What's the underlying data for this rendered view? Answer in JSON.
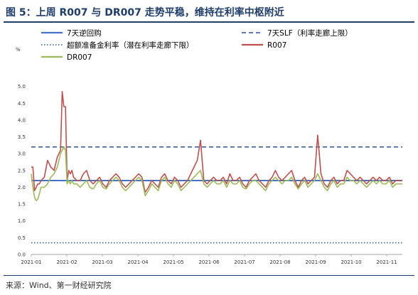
{
  "header": {
    "title": "图 5：上周 R007 与 DR007 走势平稳，维持在利率中枢附近"
  },
  "source": {
    "text": "来源：Wind、第一财经研究院"
  },
  "chart_data": {
    "type": "line",
    "unit_label": "%",
    "ylim": [
      0,
      5.5
    ],
    "y_ticks": [
      "0.0",
      "0.5",
      "1.0",
      "1.5",
      "2.0",
      "2.5",
      "3.0",
      "3.5",
      "4.0",
      "4.5",
      "5.0"
    ],
    "x_ticks": [
      "2021-01",
      "2021-02",
      "2021-03",
      "2021-04",
      "2021-05",
      "2021-06",
      "2021-07",
      "2021-08",
      "2021-09",
      "2021-10",
      "2021-11"
    ],
    "legend": [
      {
        "label": "7天逆回购",
        "color": "#4472c4",
        "style": "solid"
      },
      {
        "label": "7天SLF（利率走廊上限）",
        "color": "#2e5597",
        "style": "dashed"
      },
      {
        "label": "超额准备金利率（潜在利率走廊下限）",
        "color": "#2e5597",
        "style": "dotted"
      },
      {
        "label": "R007",
        "color": "#c0504d",
        "style": "solid"
      },
      {
        "label": "DR007",
        "color": "#9bbb59",
        "style": "solid"
      }
    ],
    "series": [
      {
        "name": "7天逆回购",
        "type": "constant",
        "value": 2.2
      },
      {
        "name": "7天SLF（利率走廊上限）",
        "type": "constant",
        "value": 3.2
      },
      {
        "name": "超额准备金利率（潜在利率走廊下限）",
        "type": "constant",
        "value": 0.35
      },
      {
        "name": "R007",
        "x": [
          0,
          1,
          2,
          3,
          4,
          5,
          6,
          8,
          10,
          12,
          14,
          16,
          18,
          19,
          20,
          21,
          22,
          23,
          24,
          25,
          26,
          28,
          30,
          32,
          34,
          36,
          38,
          40,
          42,
          44,
          46,
          48,
          50,
          52,
          54,
          56,
          58,
          60,
          62,
          64,
          66,
          68,
          70,
          72,
          74,
          76,
          78,
          80,
          82,
          84,
          86,
          88,
          90,
          92,
          94,
          96,
          98,
          100,
          102,
          104,
          106,
          108,
          110,
          112,
          114,
          116,
          118,
          120,
          122,
          124,
          126,
          128,
          130,
          132,
          134,
          136,
          138,
          140,
          142,
          144,
          146,
          148,
          150,
          152,
          154,
          156,
          158,
          160,
          162,
          164,
          166,
          168,
          170,
          172,
          174,
          176,
          178,
          180,
          182,
          184,
          186,
          188,
          190,
          192,
          194,
          196,
          198,
          200,
          202,
          204,
          206,
          208,
          210,
          212,
          214,
          216,
          218,
          220,
          222,
          224,
          226,
          228
        ],
        "y": [
          2.6,
          2.6,
          1.9,
          2.0,
          2.1,
          2.1,
          2.2,
          2.3,
          2.8,
          2.6,
          2.5,
          2.9,
          3.1,
          4.85,
          4.4,
          4.4,
          2.2,
          2.5,
          2.4,
          2.5,
          2.3,
          2.2,
          2.2,
          2.4,
          2.5,
          2.2,
          2.1,
          2.2,
          2.3,
          2.1,
          2.0,
          2.2,
          2.3,
          2.4,
          2.3,
          2.1,
          2.0,
          2.1,
          2.2,
          2.3,
          2.4,
          2.3,
          1.85,
          2.0,
          2.2,
          2.1,
          2.0,
          2.3,
          2.4,
          2.2,
          2.1,
          2.3,
          2.2,
          2.0,
          2.1,
          2.2,
          2.4,
          2.6,
          2.8,
          3.4,
          2.2,
          2.1,
          2.2,
          2.3,
          2.2,
          2.2,
          2.3,
          2.1,
          2.4,
          2.2,
          2.2,
          2.3,
          2.1,
          2.0,
          2.2,
          2.3,
          2.4,
          2.2,
          2.1,
          2.0,
          2.2,
          2.3,
          2.5,
          2.3,
          2.2,
          2.3,
          2.4,
          2.5,
          2.2,
          2.0,
          2.2,
          2.3,
          2.1,
          2.2,
          2.3,
          3.55,
          2.4,
          2.1,
          2.0,
          2.2,
          2.3,
          2.1,
          2.2,
          2.2,
          2.5,
          2.4,
          2.3,
          2.2,
          2.3,
          2.2,
          2.1,
          2.2,
          2.3,
          2.2,
          2.3,
          2.2,
          2.2,
          2.3,
          2.1,
          2.2,
          2.2,
          2.2
        ]
      },
      {
        "name": "DR007",
        "x": [
          0,
          1,
          2,
          3,
          4,
          5,
          6,
          8,
          10,
          12,
          14,
          16,
          18,
          19,
          20,
          21,
          22,
          23,
          24,
          25,
          26,
          28,
          30,
          32,
          34,
          36,
          38,
          40,
          42,
          44,
          46,
          48,
          50,
          52,
          54,
          56,
          58,
          60,
          62,
          64,
          66,
          68,
          70,
          72,
          74,
          76,
          78,
          80,
          82,
          84,
          86,
          88,
          90,
          92,
          94,
          96,
          98,
          100,
          102,
          104,
          106,
          108,
          110,
          112,
          114,
          116,
          118,
          120,
          122,
          124,
          126,
          128,
          130,
          132,
          134,
          136,
          138,
          140,
          142,
          144,
          146,
          148,
          150,
          152,
          154,
          156,
          158,
          160,
          162,
          164,
          166,
          168,
          170,
          172,
          174,
          176,
          178,
          180,
          182,
          184,
          186,
          188,
          190,
          192,
          194,
          196,
          198,
          200,
          202,
          204,
          206,
          208,
          210,
          212,
          214,
          216,
          218,
          220,
          222,
          224,
          226,
          228
        ],
        "y": [
          2.4,
          2.0,
          1.7,
          1.6,
          1.65,
          1.8,
          2.0,
          2.0,
          2.1,
          2.3,
          2.4,
          2.6,
          3.0,
          3.1,
          3.2,
          3.1,
          2.1,
          2.2,
          2.1,
          2.2,
          2.1,
          2.1,
          2.0,
          2.1,
          2.2,
          2.0,
          1.95,
          2.1,
          2.2,
          2.0,
          1.95,
          2.1,
          2.2,
          2.3,
          2.2,
          2.0,
          1.9,
          2.0,
          2.1,
          2.2,
          2.3,
          2.2,
          1.75,
          1.9,
          2.1,
          2.0,
          1.9,
          2.2,
          2.3,
          2.1,
          2.0,
          2.2,
          2.1,
          1.9,
          2.0,
          2.1,
          2.2,
          2.3,
          2.4,
          2.5,
          2.1,
          2.0,
          2.1,
          2.2,
          2.1,
          2.1,
          2.2,
          2.0,
          2.2,
          2.1,
          2.1,
          2.2,
          2.0,
          1.95,
          2.1,
          2.2,
          2.2,
          2.1,
          2.0,
          1.9,
          2.1,
          2.2,
          2.3,
          2.2,
          2.1,
          2.2,
          2.2,
          2.3,
          2.1,
          1.95,
          2.1,
          2.2,
          2.0,
          2.1,
          2.2,
          2.4,
          2.2,
          2.0,
          1.9,
          2.1,
          2.2,
          2.0,
          2.1,
          2.1,
          2.3,
          2.2,
          2.2,
          2.1,
          2.2,
          2.1,
          2.0,
          2.1,
          2.2,
          2.1,
          2.2,
          2.1,
          2.1,
          2.2,
          2.0,
          2.1,
          2.1,
          2.1
        ]
      }
    ],
    "grid": false,
    "legend_position": "top"
  }
}
